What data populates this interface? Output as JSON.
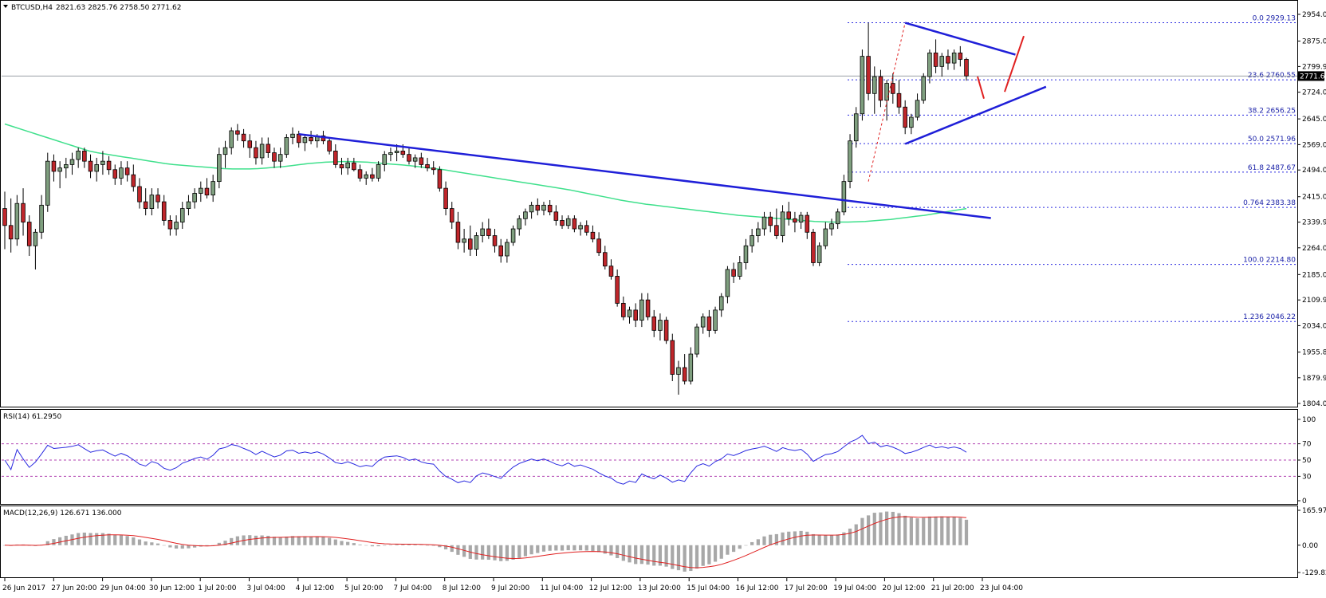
{
  "header": {
    "symbol_title": "BTCUSD,H4",
    "ohlc": "2821.63 2825.76 2758.50 2771.62"
  },
  "colors": {
    "bull_fill": "#7f9f7f",
    "bear_fill": "#c0262b",
    "candle_outline": "#000000",
    "trendline": "#1f1fd8",
    "ma_line": "#3fe08c",
    "fib_dotted": "#2a2ae0",
    "rsi_line": "#2a2ae0",
    "rsi_levels": "#b040b0",
    "macd_hist": "#a8a8a8",
    "macd_signal": "#e02020",
    "projection": "#e02020",
    "grid_border": "#000000",
    "current_price_line": "#9aa0a6",
    "current_price_bg": "#000000"
  },
  "chart_data": [
    {
      "type": "candlestick",
      "panel": "price",
      "title": "BTCUSD,H4",
      "y_ticks": [
        "2954.00",
        "2875.00",
        "2799.90",
        "2724.00",
        "2645.00",
        "2569.00",
        "2494.00",
        "2415.00",
        "2339.90",
        "2264.00",
        "2185.00",
        "2109.90",
        "2034.00",
        "1955.80",
        "1879.90",
        "1804.00"
      ],
      "ylim": [
        1804,
        2954
      ],
      "current_price": "2771.62",
      "x_labels": [
        "26 Jun 2017",
        "27 Jun 20:00",
        "29 Jun 04:00",
        "30 Jun 12:00",
        "1 Jul 20:00",
        "3 Jul 04:00",
        "4 Jul 12:00",
        "5 Jul 20:00",
        "7 Jul 04:00",
        "8 Jul 12:00",
        "9 Jul 20:00",
        "11 Jul 04:00",
        "12 Jul 12:00",
        "13 Jul 20:00",
        "15 Jul 04:00",
        "16 Jul 12:00",
        "17 Jul 20:00",
        "19 Jul 04:00",
        "20 Jul 12:00",
        "21 Jul 20:00",
        "23 Jul 04:00"
      ],
      "fib_levels": [
        {
          "label": "0.0",
          "value": "2929.13"
        },
        {
          "label": "23.6",
          "value": "2760.55"
        },
        {
          "label": "38.2",
          "value": "2656.25"
        },
        {
          "label": "50.0",
          "value": "2571.96"
        },
        {
          "label": "61.8",
          "value": "2487.67"
        },
        {
          "label": "0.764",
          "value": "2383.38"
        },
        {
          "label": "100.0",
          "value": "2214.80"
        },
        {
          "label": "1.236",
          "value": "2046.22"
        }
      ],
      "candles": [
        [
          2380,
          2430,
          2260,
          2330
        ],
        [
          2330,
          2410,
          2250,
          2290
        ],
        [
          2290,
          2420,
          2270,
          2395
        ],
        [
          2395,
          2440,
          2300,
          2340
        ],
        [
          2340,
          2360,
          2240,
          2270
        ],
        [
          2270,
          2320,
          2200,
          2310
        ],
        [
          2310,
          2420,
          2290,
          2390
        ],
        [
          2390,
          2545,
          2370,
          2520
        ],
        [
          2520,
          2540,
          2460,
          2490
        ],
        [
          2490,
          2520,
          2440,
          2500
        ],
        [
          2500,
          2530,
          2470,
          2510
        ],
        [
          2510,
          2545,
          2480,
          2525
        ],
        [
          2525,
          2560,
          2500,
          2550
        ],
        [
          2550,
          2560,
          2500,
          2520
        ],
        [
          2520,
          2540,
          2470,
          2490
        ],
        [
          2490,
          2530,
          2460,
          2510
        ],
        [
          2510,
          2550,
          2480,
          2520
        ],
        [
          2520,
          2535,
          2480,
          2495
        ],
        [
          2495,
          2510,
          2450,
          2470
        ],
        [
          2470,
          2520,
          2450,
          2500
        ],
        [
          2500,
          2520,
          2460,
          2480
        ],
        [
          2480,
          2510,
          2430,
          2445
        ],
        [
          2445,
          2470,
          2380,
          2400
        ],
        [
          2400,
          2440,
          2360,
          2380
        ],
        [
          2380,
          2440,
          2360,
          2420
        ],
        [
          2420,
          2440,
          2380,
          2400
        ],
        [
          2400,
          2420,
          2330,
          2345
        ],
        [
          2345,
          2360,
          2300,
          2320
        ],
        [
          2320,
          2360,
          2300,
          2340
        ],
        [
          2340,
          2400,
          2320,
          2380
        ],
        [
          2380,
          2420,
          2360,
          2400
        ],
        [
          2400,
          2440,
          2380,
          2425
        ],
        [
          2425,
          2460,
          2400,
          2440
        ],
        [
          2440,
          2470,
          2410,
          2420
        ],
        [
          2420,
          2480,
          2400,
          2460
        ],
        [
          2460,
          2560,
          2440,
          2540
        ],
        [
          2540,
          2580,
          2500,
          2560
        ],
        [
          2560,
          2620,
          2540,
          2610
        ],
        [
          2610,
          2630,
          2580,
          2600
        ],
        [
          2600,
          2615,
          2560,
          2580
        ],
        [
          2580,
          2600,
          2530,
          2560
        ],
        [
          2560,
          2580,
          2510,
          2530
        ],
        [
          2530,
          2590,
          2510,
          2570
        ],
        [
          2570,
          2590,
          2530,
          2545
        ],
        [
          2545,
          2560,
          2500,
          2520
        ],
        [
          2520,
          2560,
          2500,
          2540
        ],
        [
          2540,
          2600,
          2530,
          2590
        ],
        [
          2590,
          2620,
          2570,
          2600
        ],
        [
          2600,
          2610,
          2560,
          2575
        ],
        [
          2575,
          2600,
          2550,
          2590
        ],
        [
          2590,
          2610,
          2570,
          2580
        ],
        [
          2580,
          2600,
          2560,
          2595
        ],
        [
          2595,
          2610,
          2570,
          2580
        ],
        [
          2580,
          2590,
          2540,
          2550
        ],
        [
          2550,
          2570,
          2500,
          2510
        ],
        [
          2510,
          2530,
          2480,
          2500
        ],
        [
          2500,
          2530,
          2480,
          2515
        ],
        [
          2515,
          2530,
          2490,
          2495
        ],
        [
          2495,
          2510,
          2460,
          2470
        ],
        [
          2470,
          2490,
          2450,
          2480
        ],
        [
          2480,
          2500,
          2460,
          2470
        ],
        [
          2470,
          2520,
          2460,
          2510
        ],
        [
          2510,
          2550,
          2490,
          2540
        ],
        [
          2540,
          2560,
          2520,
          2545
        ],
        [
          2545,
          2570,
          2520,
          2550
        ],
        [
          2550,
          2570,
          2530,
          2540
        ],
        [
          2540,
          2560,
          2510,
          2520
        ],
        [
          2520,
          2540,
          2500,
          2530
        ],
        [
          2530,
          2545,
          2500,
          2510
        ],
        [
          2510,
          2530,
          2490,
          2500
        ],
        [
          2500,
          2520,
          2480,
          2495
        ],
        [
          2495,
          2505,
          2430,
          2440
        ],
        [
          2440,
          2460,
          2360,
          2380
        ],
        [
          2380,
          2400,
          2320,
          2340
        ],
        [
          2340,
          2370,
          2260,
          2280
        ],
        [
          2280,
          2320,
          2250,
          2290
        ],
        [
          2290,
          2330,
          2240,
          2260
        ],
        [
          2260,
          2310,
          2240,
          2300
        ],
        [
          2300,
          2340,
          2280,
          2320
        ],
        [
          2320,
          2350,
          2290,
          2300
        ],
        [
          2300,
          2320,
          2250,
          2270
        ],
        [
          2270,
          2290,
          2220,
          2240
        ],
        [
          2240,
          2290,
          2220,
          2280
        ],
        [
          2280,
          2330,
          2270,
          2320
        ],
        [
          2320,
          2360,
          2300,
          2350
        ],
        [
          2350,
          2380,
          2330,
          2370
        ],
        [
          2370,
          2400,
          2350,
          2390
        ],
        [
          2390,
          2410,
          2360,
          2375
        ],
        [
          2375,
          2400,
          2360,
          2390
        ],
        [
          2390,
          2405,
          2360,
          2370
        ],
        [
          2370,
          2390,
          2330,
          2345
        ],
        [
          2345,
          2360,
          2320,
          2330
        ],
        [
          2330,
          2360,
          2320,
          2350
        ],
        [
          2350,
          2360,
          2310,
          2320
        ],
        [
          2320,
          2340,
          2300,
          2330
        ],
        [
          2330,
          2345,
          2300,
          2310
        ],
        [
          2310,
          2330,
          2280,
          2290
        ],
        [
          2290,
          2310,
          2240,
          2250
        ],
        [
          2250,
          2270,
          2200,
          2210
        ],
        [
          2210,
          2230,
          2170,
          2180
        ],
        [
          2180,
          2200,
          2090,
          2100
        ],
        [
          2100,
          2120,
          2050,
          2060
        ],
        [
          2060,
          2090,
          2040,
          2080
        ],
        [
          2080,
          2100,
          2030,
          2050
        ],
        [
          2050,
          2130,
          2030,
          2110
        ],
        [
          2110,
          2130,
          2050,
          2060
        ],
        [
          2060,
          2080,
          2000,
          2020
        ],
        [
          2020,
          2070,
          1990,
          2050
        ],
        [
          2050,
          2060,
          1980,
          1990
        ],
        [
          1990,
          2010,
          1870,
          1890
        ],
        [
          1890,
          1930,
          1830,
          1910
        ],
        [
          1910,
          1950,
          1860,
          1870
        ],
        [
          1870,
          1970,
          1860,
          1950
        ],
        [
          1950,
          2040,
          1940,
          2030
        ],
        [
          2030,
          2070,
          2010,
          2060
        ],
        [
          2060,
          2080,
          2000,
          2020
        ],
        [
          2020,
          2090,
          2010,
          2080
        ],
        [
          2080,
          2130,
          2060,
          2120
        ],
        [
          2120,
          2210,
          2100,
          2200
        ],
        [
          2200,
          2220,
          2160,
          2180
        ],
        [
          2180,
          2240,
          2170,
          2220
        ],
        [
          2220,
          2290,
          2200,
          2270
        ],
        [
          2270,
          2320,
          2250,
          2300
        ],
        [
          2300,
          2340,
          2280,
          2320
        ],
        [
          2320,
          2370,
          2300,
          2355
        ],
        [
          2355,
          2370,
          2310,
          2330
        ],
        [
          2330,
          2380,
          2290,
          2300
        ],
        [
          2300,
          2390,
          2280,
          2370
        ],
        [
          2370,
          2400,
          2330,
          2350
        ],
        [
          2350,
          2370,
          2310,
          2340
        ],
        [
          2340,
          2370,
          2320,
          2360
        ],
        [
          2360,
          2370,
          2290,
          2310
        ],
        [
          2310,
          2320,
          2210,
          2220
        ],
        [
          2220,
          2280,
          2210,
          2270
        ],
        [
          2270,
          2340,
          2260,
          2320
        ],
        [
          2320,
          2350,
          2300,
          2335
        ],
        [
          2335,
          2380,
          2320,
          2370
        ],
        [
          2370,
          2480,
          2360,
          2460
        ],
        [
          2460,
          2600,
          2440,
          2580
        ],
        [
          2580,
          2680,
          2560,
          2660
        ],
        [
          2660,
          2850,
          2640,
          2830
        ],
        [
          2830,
          2929,
          2700,
          2720
        ],
        [
          2720,
          2800,
          2660,
          2770
        ],
        [
          2770,
          2790,
          2680,
          2700
        ],
        [
          2700,
          2760,
          2640,
          2750
        ],
        [
          2750,
          2780,
          2690,
          2720
        ],
        [
          2720,
          2760,
          2660,
          2680
        ],
        [
          2680,
          2700,
          2600,
          2620
        ],
        [
          2620,
          2660,
          2600,
          2650
        ],
        [
          2650,
          2720,
          2640,
          2700
        ],
        [
          2700,
          2780,
          2690,
          2770
        ],
        [
          2770,
          2850,
          2750,
          2840
        ],
        [
          2840,
          2880,
          2780,
          2800
        ],
        [
          2800,
          2840,
          2770,
          2830
        ],
        [
          2830,
          2850,
          2790,
          2810
        ],
        [
          2810,
          2850,
          2790,
          2840
        ],
        [
          2840,
          2860,
          2800,
          2821
        ],
        [
          2821,
          2826,
          2758,
          2772
        ]
      ],
      "moving_average": [
        2630,
        2622,
        2614,
        2606,
        2598,
        2590,
        2582,
        2574,
        2566,
        2558,
        2550,
        2545,
        2541,
        2537,
        2533,
        2529,
        2525,
        2521,
        2517,
        2513,
        2510,
        2508,
        2506,
        2504,
        2502,
        2500,
        2498,
        2497,
        2497,
        2497,
        2498,
        2500,
        2502,
        2504,
        2507,
        2510,
        2513,
        2515,
        2517,
        2518,
        2519,
        2519,
        2518,
        2517,
        2515,
        2513,
        2511,
        2509,
        2507,
        2504,
        2501,
        2498,
        2495,
        2491,
        2487,
        2483,
        2479,
        2475,
        2471,
        2467,
        2463,
        2459,
        2455,
        2451,
        2447,
        2443,
        2439,
        2435,
        2430,
        2425,
        2420,
        2415,
        2410,
        2405,
        2401,
        2397,
        2393,
        2390,
        2387,
        2384,
        2381,
        2378,
        2375,
        2372,
        2369,
        2366,
        2363,
        2360,
        2358,
        2356,
        2354,
        2352,
        2350,
        2348,
        2346,
        2344,
        2342,
        2341,
        2340,
        2340,
        2340,
        2341,
        2342,
        2344,
        2346,
        2348,
        2351,
        2354,
        2357,
        2360,
        2364,
        2368,
        2372,
        2376,
        2380
      ],
      "ma_x_start": 0,
      "trendlines": [
        {
          "from_bar": 48,
          "from_value": 2600,
          "to_bar": 161,
          "to_value": 2352
        },
        {
          "from_bar": 147,
          "from_value": 2929,
          "to_bar": 165,
          "to_value": 2835
        },
        {
          "from_bar": 147,
          "from_value": 2571,
          "to_bar": 170,
          "to_value": 2740
        }
      ]
    },
    {
      "type": "line",
      "panel": "rsi",
      "title": "RSI(14) 61.2950",
      "y_ticks": [
        "100",
        "70",
        "50",
        "30",
        "0"
      ],
      "levels": [
        70,
        50,
        30
      ],
      "ylim": [
        0,
        100
      ]
    },
    {
      "type": "bar",
      "panel": "macd",
      "title": "MACD(12,26,9) 126.671 136.000",
      "y_ticks": [
        "165.97",
        "0.00",
        "-129.822"
      ],
      "ylim": [
        -129.822,
        165.97
      ]
    }
  ]
}
